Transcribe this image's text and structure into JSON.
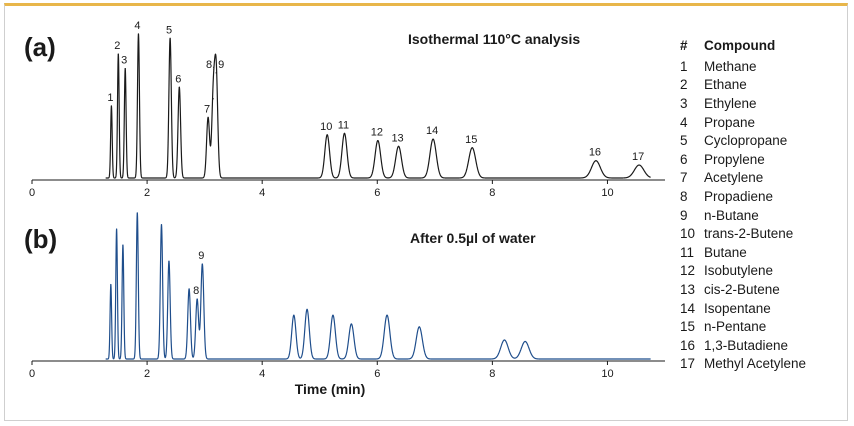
{
  "chart_data": [
    {
      "type": "line",
      "panel_label": "(a)",
      "title": "Isothermal 110°C analysis",
      "xlabel": "",
      "ylabel": "",
      "xlim": [
        0,
        11
      ],
      "x_ticks": [
        0,
        2,
        4,
        6,
        8,
        10
      ],
      "grid": false,
      "line_color": "#1a1a1a",
      "peaks": [
        {
          "label": "1",
          "time": 1.38,
          "height": 0.5
        },
        {
          "label": "2",
          "time": 1.5,
          "height": 0.86
        },
        {
          "label": "3",
          "time": 1.62,
          "height": 0.76
        },
        {
          "label": "4",
          "time": 1.85,
          "height": 1.0
        },
        {
          "label": "5",
          "time": 2.4,
          "height": 0.97
        },
        {
          "label": "6",
          "time": 2.56,
          "height": 0.63
        },
        {
          "label": "7",
          "time": 3.06,
          "height": 0.42
        },
        {
          "label": "",
          "time": 3.15,
          "height": 0.55
        },
        {
          "label": "8, 9",
          "time": 3.2,
          "height": 0.73
        },
        {
          "label": "10",
          "time": 5.13,
          "height": 0.3
        },
        {
          "label": "11",
          "time": 5.43,
          "height": 0.31
        },
        {
          "label": "12",
          "time": 6.01,
          "height": 0.26
        },
        {
          "label": "13",
          "time": 6.37,
          "height": 0.22
        },
        {
          "label": "14",
          "time": 6.97,
          "height": 0.27
        },
        {
          "label": "15",
          "time": 7.65,
          "height": 0.21
        },
        {
          "label": "16",
          "time": 9.8,
          "height": 0.12
        },
        {
          "label": "17",
          "time": 10.55,
          "height": 0.09
        }
      ]
    },
    {
      "type": "line",
      "panel_label": "(b)",
      "title": "After 0.5µl of water",
      "xlabel": "Time (min)",
      "ylabel": "",
      "xlim": [
        0,
        11
      ],
      "x_ticks": [
        0,
        2,
        4,
        6,
        8,
        10
      ],
      "grid": false,
      "line_color": "#1f4e8c",
      "peaks": [
        {
          "label": "",
          "time": 1.37,
          "height": 0.51
        },
        {
          "label": "",
          "time": 1.47,
          "height": 0.89
        },
        {
          "label": "",
          "time": 1.58,
          "height": 0.78
        },
        {
          "label": "",
          "time": 1.83,
          "height": 1.0
        },
        {
          "label": "",
          "time": 2.25,
          "height": 0.92
        },
        {
          "label": "",
          "time": 2.38,
          "height": 0.67
        },
        {
          "label": "",
          "time": 2.73,
          "height": 0.48
        },
        {
          "label": "8",
          "time": 2.87,
          "height": 0.41
        },
        {
          "label": "9",
          "time": 2.96,
          "height": 0.65
        },
        {
          "label": "",
          "time": 4.55,
          "height": 0.3
        },
        {
          "label": "",
          "time": 4.78,
          "height": 0.34
        },
        {
          "label": "",
          "time": 5.23,
          "height": 0.3
        },
        {
          "label": "",
          "time": 5.55,
          "height": 0.24
        },
        {
          "label": "",
          "time": 6.17,
          "height": 0.3
        },
        {
          "label": "",
          "time": 6.73,
          "height": 0.22
        },
        {
          "label": "",
          "time": 8.21,
          "height": 0.13
        },
        {
          "label": "",
          "time": 8.57,
          "height": 0.12
        }
      ]
    }
  ],
  "legend": {
    "header_num": "#",
    "header_name": "Compound",
    "items": [
      {
        "num": "1",
        "name": "Methane"
      },
      {
        "num": "2",
        "name": "Ethane"
      },
      {
        "num": "3",
        "name": "Ethylene"
      },
      {
        "num": "4",
        "name": "Propane"
      },
      {
        "num": "5",
        "name": "Cyclopropane"
      },
      {
        "num": "6",
        "name": "Propylene"
      },
      {
        "num": "7",
        "name": "Acetylene"
      },
      {
        "num": "8",
        "name": "Propadiene"
      },
      {
        "num": "9",
        "name": "n-Butane"
      },
      {
        "num": "10",
        "name": "trans-2-Butene"
      },
      {
        "num": "11",
        "name": "Butane"
      },
      {
        "num": "12",
        "name": "Isobutylene"
      },
      {
        "num": "13",
        "name": "cis-2-Butene"
      },
      {
        "num": "14",
        "name": "Isopentane"
      },
      {
        "num": "15",
        "name": "n-Pentane"
      },
      {
        "num": "16",
        "name": "1,3-Butadiene"
      },
      {
        "num": "17",
        "name": "Methyl Acetylene"
      }
    ]
  }
}
